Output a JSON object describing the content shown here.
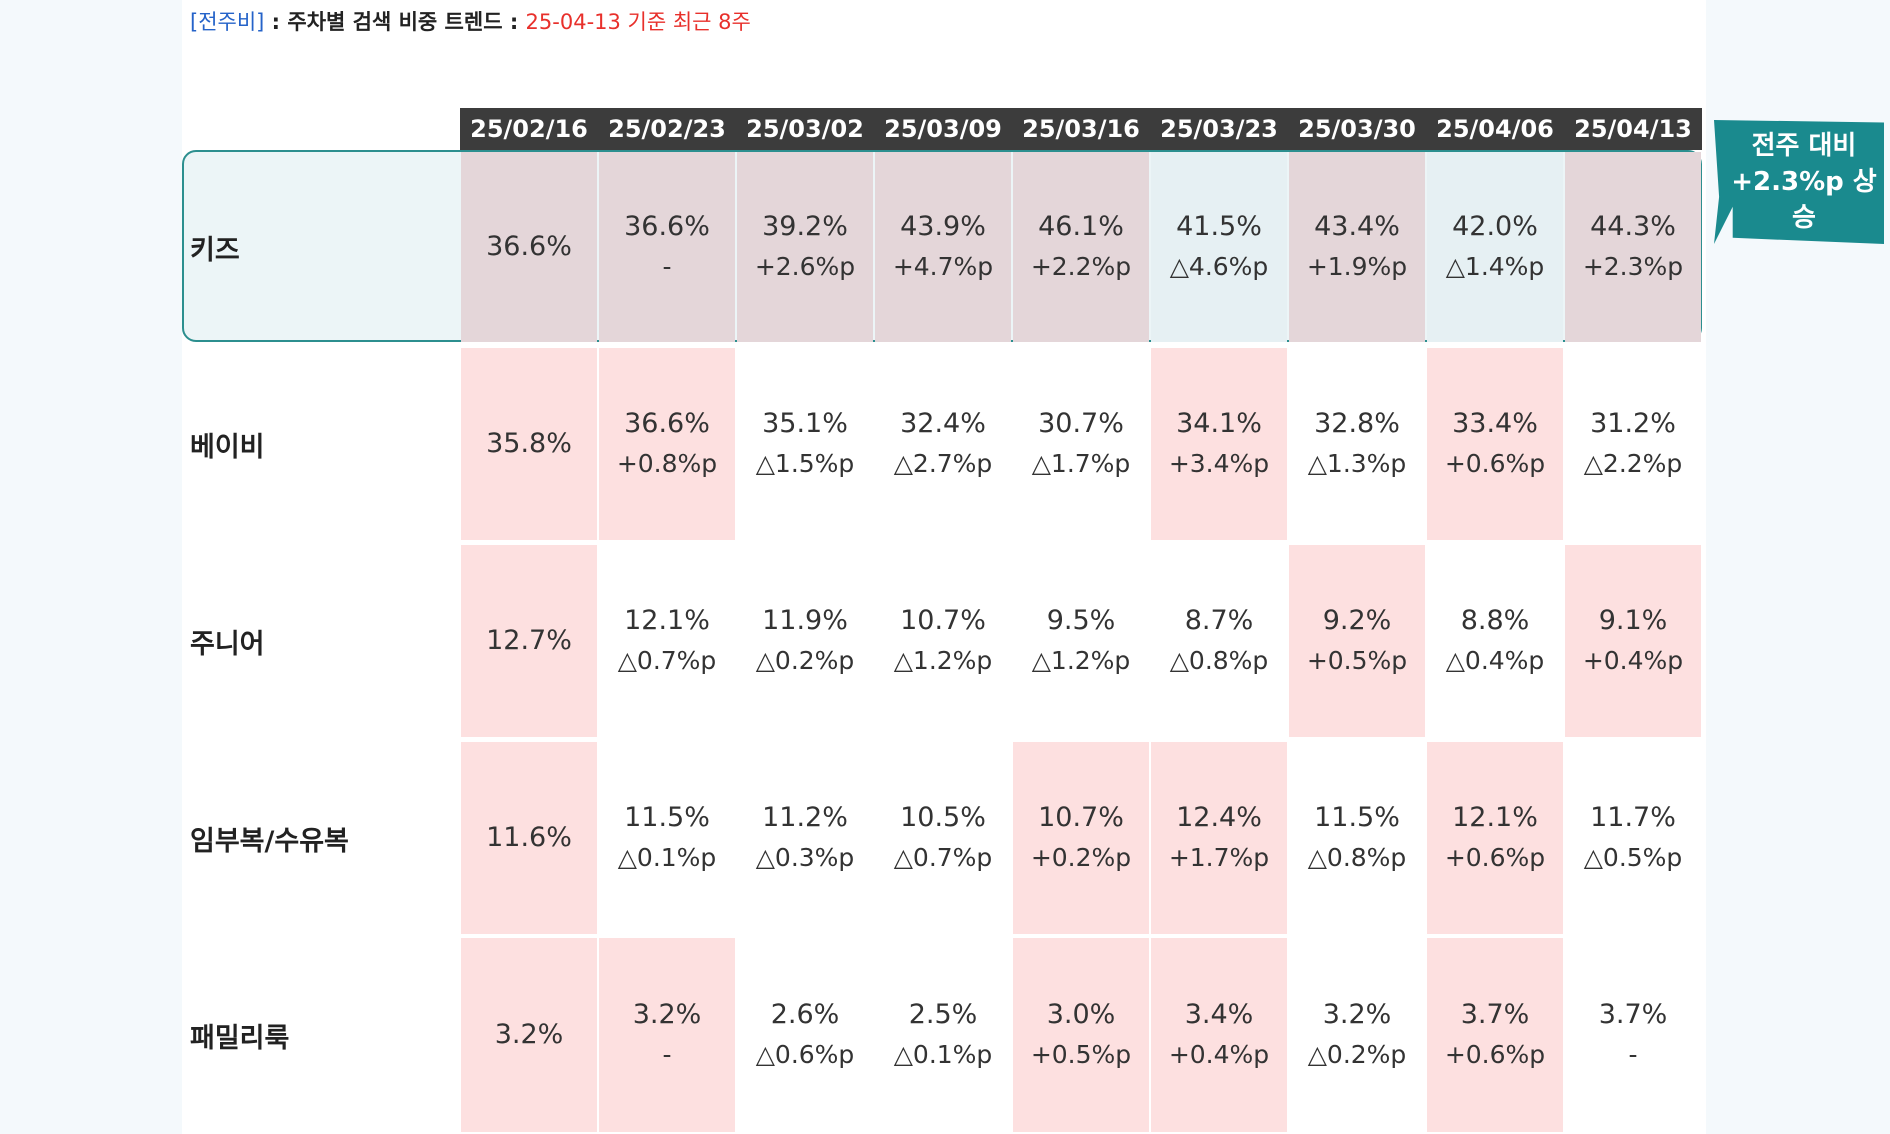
{
  "header": {
    "tag": "[전주비]",
    "title": " : 주차별 검색 비중 트렌드 : ",
    "subtitle": "25-04-13 기준 최근 8주"
  },
  "callout": {
    "line1": "전주 대비",
    "line2": "+2.3%p 상승"
  },
  "colors": {
    "header_bg": "#3c3c3c",
    "increase_bg": "#fde0e0",
    "kids_increase_bg": "#e4d6d9",
    "kids_decrease_bg": "#e6f0f3",
    "highlight_border": "#2c8f8f",
    "callout_bg": "#1a8a8e",
    "tag_color": "#2563c9",
    "subtitle_color": "#e8302b"
  },
  "chart_data": {
    "type": "table",
    "columns": [
      "25/02/16",
      "25/02/23",
      "25/03/02",
      "25/03/09",
      "25/03/16",
      "25/03/23",
      "25/03/30",
      "25/04/06",
      "25/04/13"
    ],
    "rows": [
      {
        "label": "키즈",
        "highlighted": true,
        "values": [
          "36.6%",
          "36.6%",
          "39.2%",
          "43.9%",
          "46.1%",
          "41.5%",
          "43.4%",
          "42.0%",
          "44.3%"
        ],
        "changes": [
          "",
          "-",
          "+2.6%p",
          "+4.7%p",
          "+2.2%p",
          "△4.6%p",
          "+1.9%p",
          "△1.4%p",
          "+2.3%p"
        ],
        "shaded": [
          true,
          true,
          true,
          true,
          true,
          false,
          true,
          false,
          true
        ]
      },
      {
        "label": "베이비",
        "highlighted": false,
        "values": [
          "35.8%",
          "36.6%",
          "35.1%",
          "32.4%",
          "30.7%",
          "34.1%",
          "32.8%",
          "33.4%",
          "31.2%"
        ],
        "changes": [
          "",
          "+0.8%p",
          "△1.5%p",
          "△2.7%p",
          "△1.7%p",
          "+3.4%p",
          "△1.3%p",
          "+0.6%p",
          "△2.2%p"
        ],
        "shaded": [
          true,
          true,
          false,
          false,
          false,
          true,
          false,
          true,
          false
        ]
      },
      {
        "label": "주니어",
        "highlighted": false,
        "values": [
          "12.7%",
          "12.1%",
          "11.9%",
          "10.7%",
          "9.5%",
          "8.7%",
          "9.2%",
          "8.8%",
          "9.1%"
        ],
        "changes": [
          "",
          "△0.7%p",
          "△0.2%p",
          "△1.2%p",
          "△1.2%p",
          "△0.8%p",
          "+0.5%p",
          "△0.4%p",
          "+0.4%p"
        ],
        "shaded": [
          true,
          false,
          false,
          false,
          false,
          false,
          true,
          false,
          true
        ]
      },
      {
        "label": "임부복/수유복",
        "highlighted": false,
        "values": [
          "11.6%",
          "11.5%",
          "11.2%",
          "10.5%",
          "10.7%",
          "12.4%",
          "11.5%",
          "12.1%",
          "11.7%"
        ],
        "changes": [
          "",
          "△0.1%p",
          "△0.3%p",
          "△0.7%p",
          "+0.2%p",
          "+1.7%p",
          "△0.8%p",
          "+0.6%p",
          "△0.5%p"
        ],
        "shaded": [
          true,
          false,
          false,
          false,
          true,
          true,
          false,
          true,
          false
        ]
      },
      {
        "label": "패밀리룩",
        "highlighted": false,
        "values": [
          "3.2%",
          "3.2%",
          "2.6%",
          "2.5%",
          "3.0%",
          "3.4%",
          "3.2%",
          "3.7%",
          "3.7%"
        ],
        "changes": [
          "",
          "-",
          "△0.6%p",
          "△0.1%p",
          "+0.5%p",
          "+0.4%p",
          "△0.2%p",
          "+0.6%p",
          "-"
        ],
        "shaded": [
          true,
          true,
          false,
          false,
          true,
          true,
          false,
          true,
          false
        ]
      }
    ]
  }
}
